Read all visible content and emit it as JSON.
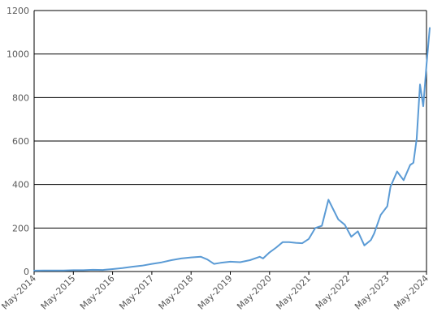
{
  "chart_data": {
    "type": "line",
    "title": "",
    "xlabel": "",
    "ylabel": "",
    "ylim": [
      0,
      1200
    ],
    "yticks": [
      0,
      200,
      400,
      600,
      800,
      1000,
      1200
    ],
    "grid": "horizontal",
    "legend": "none",
    "x_tick_labels": [
      "May-2014",
      "May-2015",
      "May-2016",
      "May-2017",
      "May-2018",
      "May-2019",
      "May-2020",
      "May-2021",
      "May-2022",
      "May-2023",
      "May-2024"
    ],
    "series": [
      {
        "color": "#5B9BD5",
        "x": [
          "2014-05",
          "2014-08",
          "2014-11",
          "2015-02",
          "2015-05",
          "2015-08",
          "2015-11",
          "2016-02",
          "2016-05",
          "2016-08",
          "2016-11",
          "2017-02",
          "2017-05",
          "2017-08",
          "2017-11",
          "2018-02",
          "2018-05",
          "2018-08",
          "2018-10",
          "2018-12",
          "2019-02",
          "2019-05",
          "2019-08",
          "2019-11",
          "2020-02",
          "2020-03",
          "2020-05",
          "2020-07",
          "2020-09",
          "2020-11",
          "2021-01",
          "2021-03",
          "2021-05",
          "2021-07",
          "2021-09",
          "2021-11",
          "2021-12",
          "2022-02",
          "2022-04",
          "2022-06",
          "2022-08",
          "2022-10",
          "2022-12",
          "2023-01",
          "2023-03",
          "2023-05",
          "2023-06",
          "2023-08",
          "2023-10",
          "2023-12",
          "2024-01",
          "2024-02",
          "2024-03",
          "2024-04",
          "2024-05",
          "2024-06"
        ],
        "y": [
          4,
          5,
          5,
          5,
          6,
          6,
          8,
          7,
          11,
          16,
          22,
          27,
          35,
          42,
          52,
          60,
          65,
          68,
          55,
          35,
          40,
          45,
          43,
          52,
          68,
          60,
          88,
          110,
          135,
          135,
          132,
          130,
          150,
          200,
          210,
          330,
          300,
          240,
          215,
          160,
          185,
          120,
          145,
          175,
          260,
          300,
          390,
          460,
          420,
          490,
          500,
          610,
          860,
          760,
          950,
          1120
        ]
      }
    ]
  }
}
